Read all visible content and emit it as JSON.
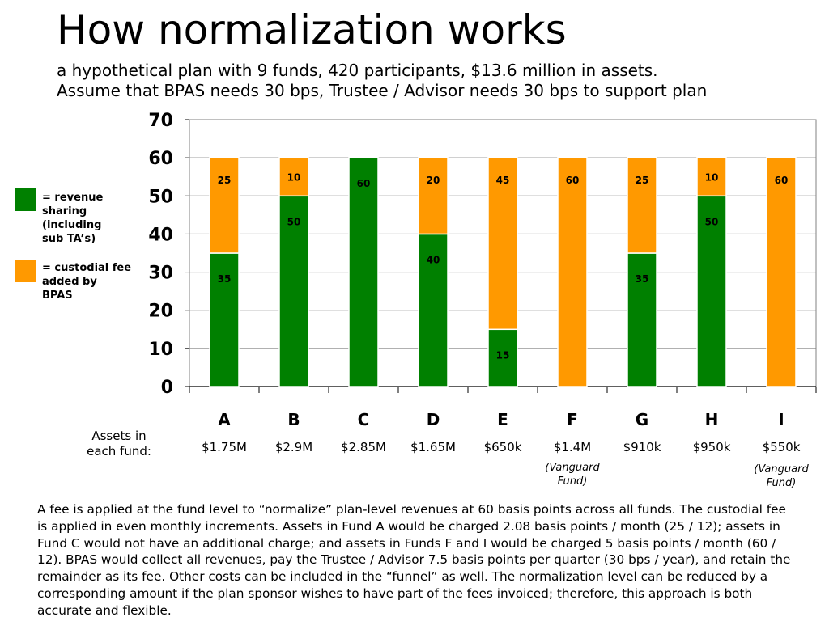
{
  "page": {
    "title": "How normalization works",
    "subtitle_line1": "a hypothetical plan with 9 funds, 420 participants, $13.6 million in assets.",
    "subtitle_line2": "Assume that BPAS needs 30 bps, Trustee / Advisor needs 30 bps to support plan"
  },
  "legend": [
    {
      "label": "= revenue\n   sharing\n   (including\n    sub TA’s)",
      "color": "#008000"
    },
    {
      "label": "= custodial fee\n   added by\n   BPAS",
      "color": "#FF9900"
    }
  ],
  "assets": {
    "label": "Assets in\neach fund:",
    "values": [
      "$1.75M",
      "$2.9M",
      "$2.85M",
      "$1.65M",
      "$650k",
      "$1.4M",
      "$910k",
      "$950k",
      "$550k"
    ],
    "notes": [
      {
        "category": "F",
        "text": "(Vanguard\nFund)"
      },
      {
        "category": "I",
        "text": "(Vanguard\nFund)"
      }
    ]
  },
  "chart_data": {
    "type": "bar",
    "stacked": true,
    "categories": [
      "A",
      "B",
      "C",
      "D",
      "E",
      "F",
      "G",
      "H",
      "I"
    ],
    "series": [
      {
        "legend_index": 0,
        "color": "#008000",
        "values": [
          35,
          50,
          60,
          40,
          15,
          0,
          35,
          50,
          0
        ]
      },
      {
        "legend_index": 1,
        "color": "#FF9900",
        "values": [
          25,
          10,
          0,
          20,
          45,
          60,
          25,
          10,
          60
        ]
      }
    ],
    "data_labels": [
      [
        "35",
        "50",
        "60",
        "40",
        "15",
        "",
        "35",
        "50",
        ""
      ],
      [
        "25",
        "10",
        "",
        "20",
        "45",
        "60",
        "25",
        "10",
        "60"
      ]
    ],
    "yticks": [
      0,
      10,
      20,
      30,
      40,
      50,
      60,
      70
    ],
    "ylim": [
      0,
      70
    ],
    "grid": true,
    "legend_position": "left"
  },
  "paragraph": "A fee is applied at the fund level to “normalize” plan-level revenues at 60 basis points across all funds. The custodial fee is applied in even monthly increments. Assets in Fund A would be charged 2.08 basis points / month (25 / 12); assets in Fund C would not have an additional charge; and assets in Funds F and I would be charged 5 basis points / month (60 / 12). BPAS would collect all revenues, pay the Trustee / Advisor 7.5 basis points per quarter (30 bps / year), and retain the remainder as its fee. Other costs can be included in the “funnel” as well. The normalization level can be reduced by a corresponding amount if the plan sponsor wishes to have part of the fees invoiced; therefore, this approach is both accurate and flexible."
}
